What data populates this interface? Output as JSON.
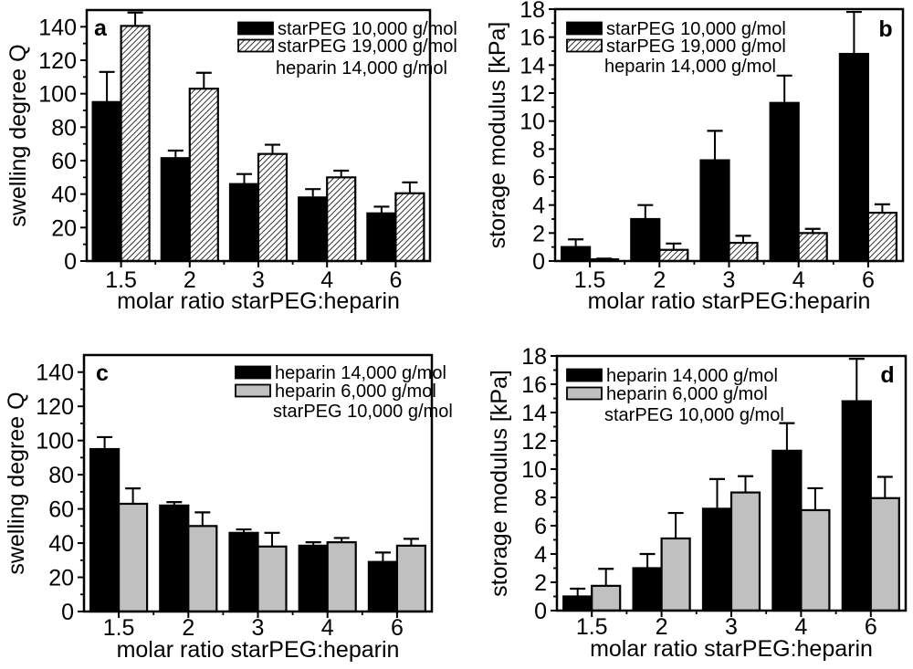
{
  "figure_caption": "",
  "colors": {
    "bar_black": "#000000",
    "bar_gray": "#c0c0c0",
    "axis": "#000000",
    "background": "#ffffff"
  },
  "chart_data": [
    {
      "id": "a",
      "type": "bar",
      "panel_letter": "a",
      "panel_letter_position": "top-left",
      "ylabel": "swelling degree Q",
      "xlabel": "molar ratio starPEG:heparin",
      "categories": [
        "1.5",
        "2",
        "3",
        "4",
        "6"
      ],
      "ylim": [
        0,
        150
      ],
      "ytick_interval": 20,
      "ytick_label_max": 140,
      "minor_ticks": true,
      "grid": false,
      "legend_position": "top-right",
      "annotation": "heparin 14,000 g/mol",
      "series": [
        {
          "name": "starPEG 10,000 g/mol",
          "style": "black",
          "values": [
            95,
            61.5,
            46,
            38,
            28.5
          ],
          "errors_plus": [
            18,
            4.5,
            6,
            5,
            4
          ]
        },
        {
          "name": "starPEG 19,000 g/mol",
          "style": "hatched",
          "values": [
            140.5,
            103,
            64,
            50,
            40.5
          ],
          "errors_plus": [
            8,
            9.5,
            5.5,
            4,
            6.5
          ]
        }
      ]
    },
    {
      "id": "b",
      "type": "bar",
      "panel_letter": "b",
      "panel_letter_position": "top-right",
      "ylabel": "storage modulus [kPa]",
      "xlabel": "molar ratio starPEG:heparin",
      "categories": [
        "1.5",
        "2",
        "3",
        "4",
        "6"
      ],
      "ylim": [
        0,
        18
      ],
      "ytick_interval": 2,
      "ytick_label_max": 18,
      "minor_ticks": true,
      "grid": false,
      "legend_position": "top-left",
      "annotation": "heparin 14,000 g/mol",
      "series": [
        {
          "name": "starPEG 10,000 g/mol",
          "style": "black",
          "values": [
            1.0,
            3.0,
            7.2,
            11.3,
            14.8
          ],
          "errors_plus": [
            0.55,
            1.0,
            2.1,
            1.95,
            3.0
          ]
        },
        {
          "name": "starPEG 19,000 g/mol",
          "style": "hatched",
          "values": [
            0.12,
            0.8,
            1.3,
            2.0,
            3.45
          ],
          "errors_plus": [
            0.05,
            0.45,
            0.5,
            0.3,
            0.6
          ]
        }
      ]
    },
    {
      "id": "c",
      "type": "bar",
      "panel_letter": "c",
      "panel_letter_position": "top-left",
      "ylabel": "swelling degree Q",
      "xlabel": "molar ratio starPEG:heparin",
      "categories": [
        "1.5",
        "2",
        "3",
        "4",
        "6"
      ],
      "ylim": [
        0,
        150
      ],
      "ytick_interval": 20,
      "ytick_label_max": 140,
      "minor_ticks": true,
      "grid": false,
      "legend_position": "top-right",
      "annotation": "starPEG 10,000 g/mol",
      "series": [
        {
          "name": "heparin 14,000 g/mol",
          "style": "black",
          "values": [
            95,
            62,
            46,
            38.5,
            29
          ],
          "errors_plus": [
            7,
            2,
            2,
            2,
            5.5
          ]
        },
        {
          "name": "heparin   6,000 g/mol",
          "style": "gray",
          "values": [
            63,
            50,
            38,
            40.5,
            38.5
          ],
          "errors_plus": [
            9,
            8,
            8,
            2.5,
            4
          ]
        }
      ]
    },
    {
      "id": "d",
      "type": "bar",
      "panel_letter": "d",
      "panel_letter_position": "top-right",
      "ylabel": "storage modulus [kPa]",
      "xlabel": "molar ratio starPEG:heparin",
      "categories": [
        "1.5",
        "2",
        "3",
        "4",
        "6"
      ],
      "ylim": [
        0,
        18
      ],
      "ytick_interval": 2,
      "ytick_label_max": 18,
      "minor_ticks": true,
      "grid": false,
      "legend_position": "top-left",
      "annotation": "starPEG 10,000 g/mol",
      "series": [
        {
          "name": "heparin 14,000 g/mol",
          "style": "black",
          "values": [
            1.0,
            3.0,
            7.2,
            11.3,
            14.8
          ],
          "errors_plus": [
            0.55,
            1.0,
            2.1,
            1.95,
            3.0
          ]
        },
        {
          "name": "heparin   6,000 g/mol",
          "style": "gray",
          "values": [
            1.75,
            5.1,
            8.35,
            7.1,
            7.95
          ],
          "errors_plus": [
            1.2,
            1.8,
            1.15,
            1.55,
            1.5
          ]
        }
      ]
    }
  ]
}
